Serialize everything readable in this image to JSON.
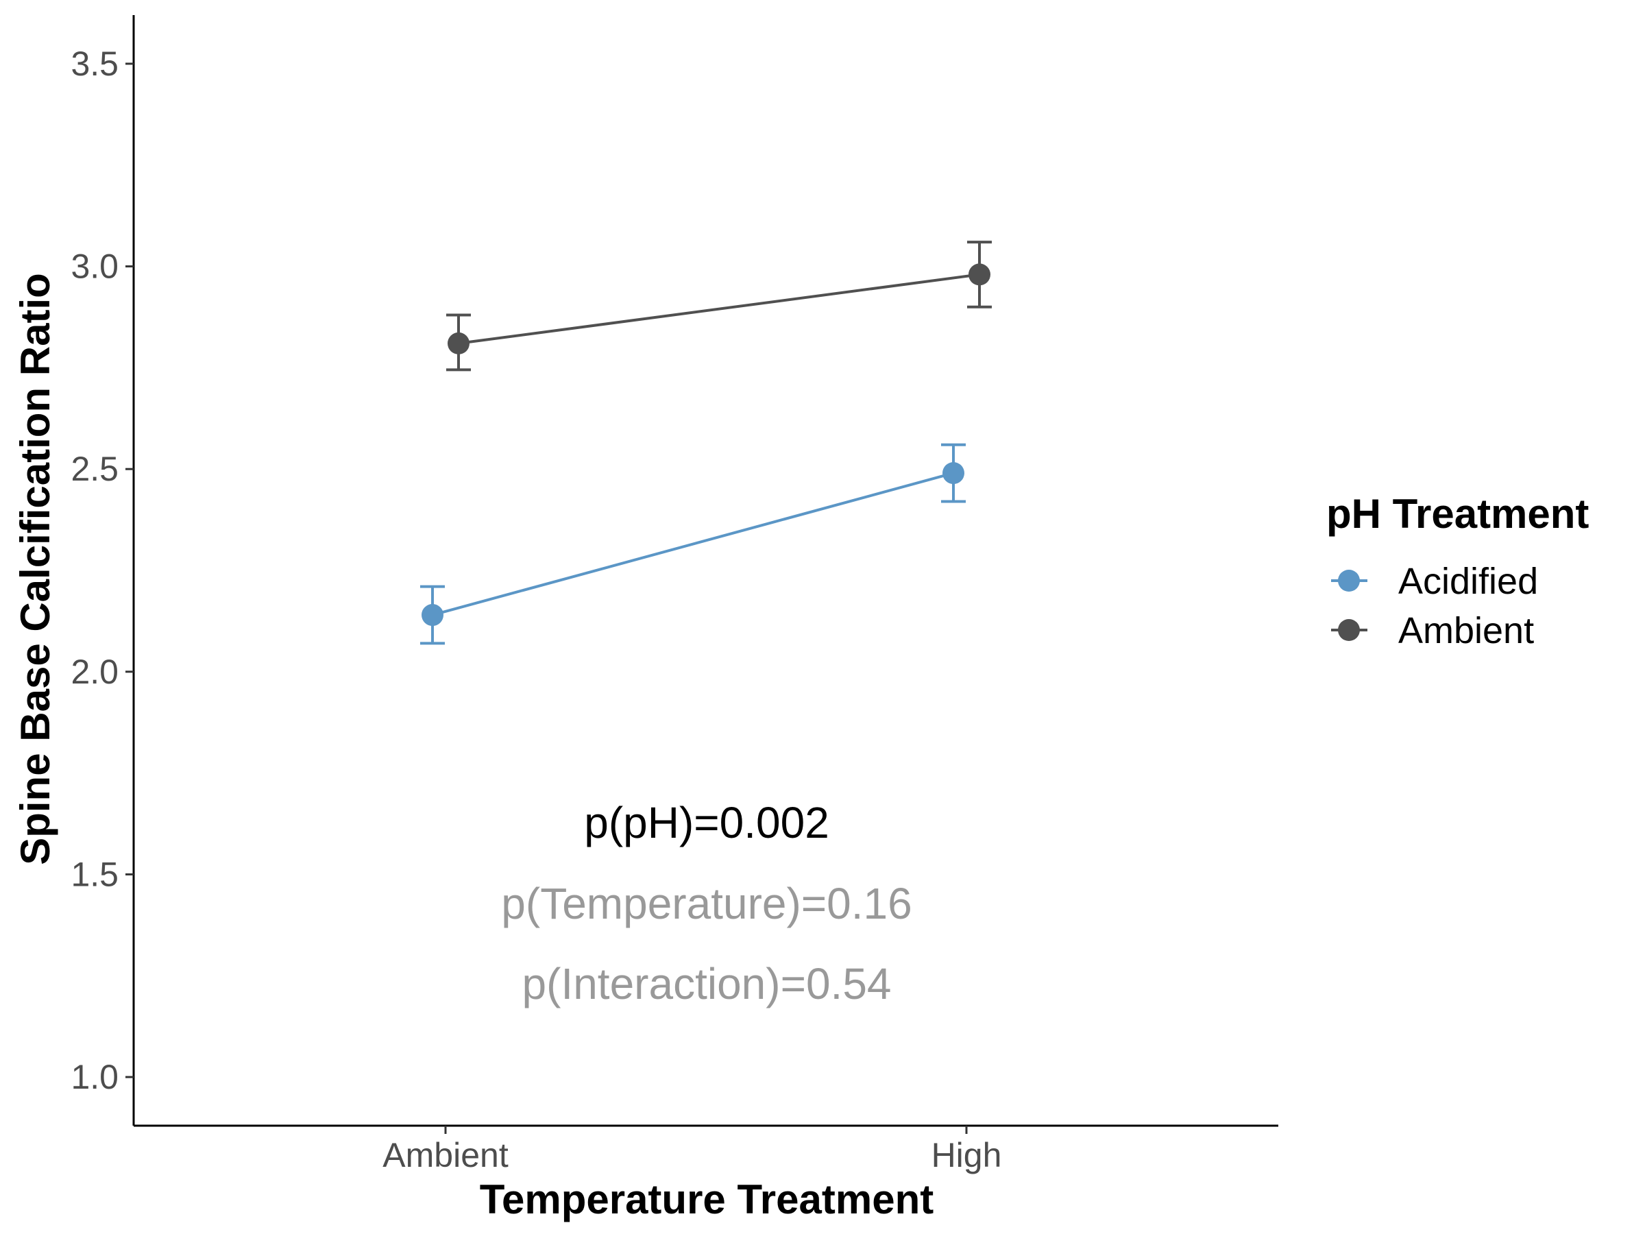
{
  "chart_data": {
    "type": "line",
    "xlabel": "Temperature Treatment",
    "ylabel": "Spine Base Calcification Ratio",
    "categories": [
      "Ambient",
      "High"
    ],
    "ylim": [
      0.88,
      3.62
    ],
    "yticks": [
      1.0,
      1.5,
      2.0,
      2.5,
      3.0,
      3.5
    ],
    "ytick_labels": [
      "1.0",
      "1.5",
      "2.0",
      "2.5",
      "3.0",
      "3.5"
    ],
    "grid": false,
    "legend": {
      "title": "pH Treatment",
      "placement": "right"
    },
    "series": [
      {
        "name": "Acidified",
        "color": "#5b96c6",
        "dodge": -1,
        "values": [
          2.14,
          2.49
        ],
        "error_low": [
          2.07,
          2.42
        ],
        "error_high": [
          2.21,
          2.56
        ]
      },
      {
        "name": "Ambient",
        "color": "#505050",
        "dodge": 1,
        "values": [
          2.81,
          2.98
        ],
        "error_low": [
          2.745,
          2.9
        ],
        "error_high": [
          2.88,
          3.06
        ]
      }
    ],
    "annotations": [
      {
        "text": "p(pH)=0.002",
        "color": "#000000"
      },
      {
        "text": "p(Temperature)=0.16",
        "color": "#999999"
      },
      {
        "text": "p(Interaction)=0.54",
        "color": "#999999"
      }
    ]
  }
}
